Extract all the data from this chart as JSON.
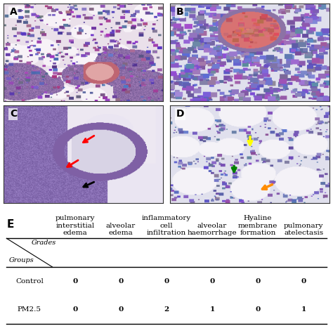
{
  "panel_labels": [
    "A",
    "B",
    "C",
    "D",
    "E"
  ],
  "table_label": "E",
  "col_headers": [
    "pulmonary\ninterstitial\nedema",
    "alveolar\nedema",
    "inflammatory\ncell\ninfiltration",
    "alveolar\nhaemorrhage",
    "Hyaline\nmembrane\nformation",
    "pulmonary\natelectasis"
  ],
  "data_values": [
    [
      0,
      0,
      0,
      0,
      0,
      0
    ],
    [
      0,
      0,
      2,
      1,
      0,
      1
    ]
  ],
  "row_labels": [
    "Control",
    "PM2.5"
  ],
  "background_color": "#ffffff",
  "border_color": "#333333",
  "label_fontsize": 10,
  "table_fontsize": 7.5,
  "fig_width": 4.74,
  "fig_height": 4.74
}
